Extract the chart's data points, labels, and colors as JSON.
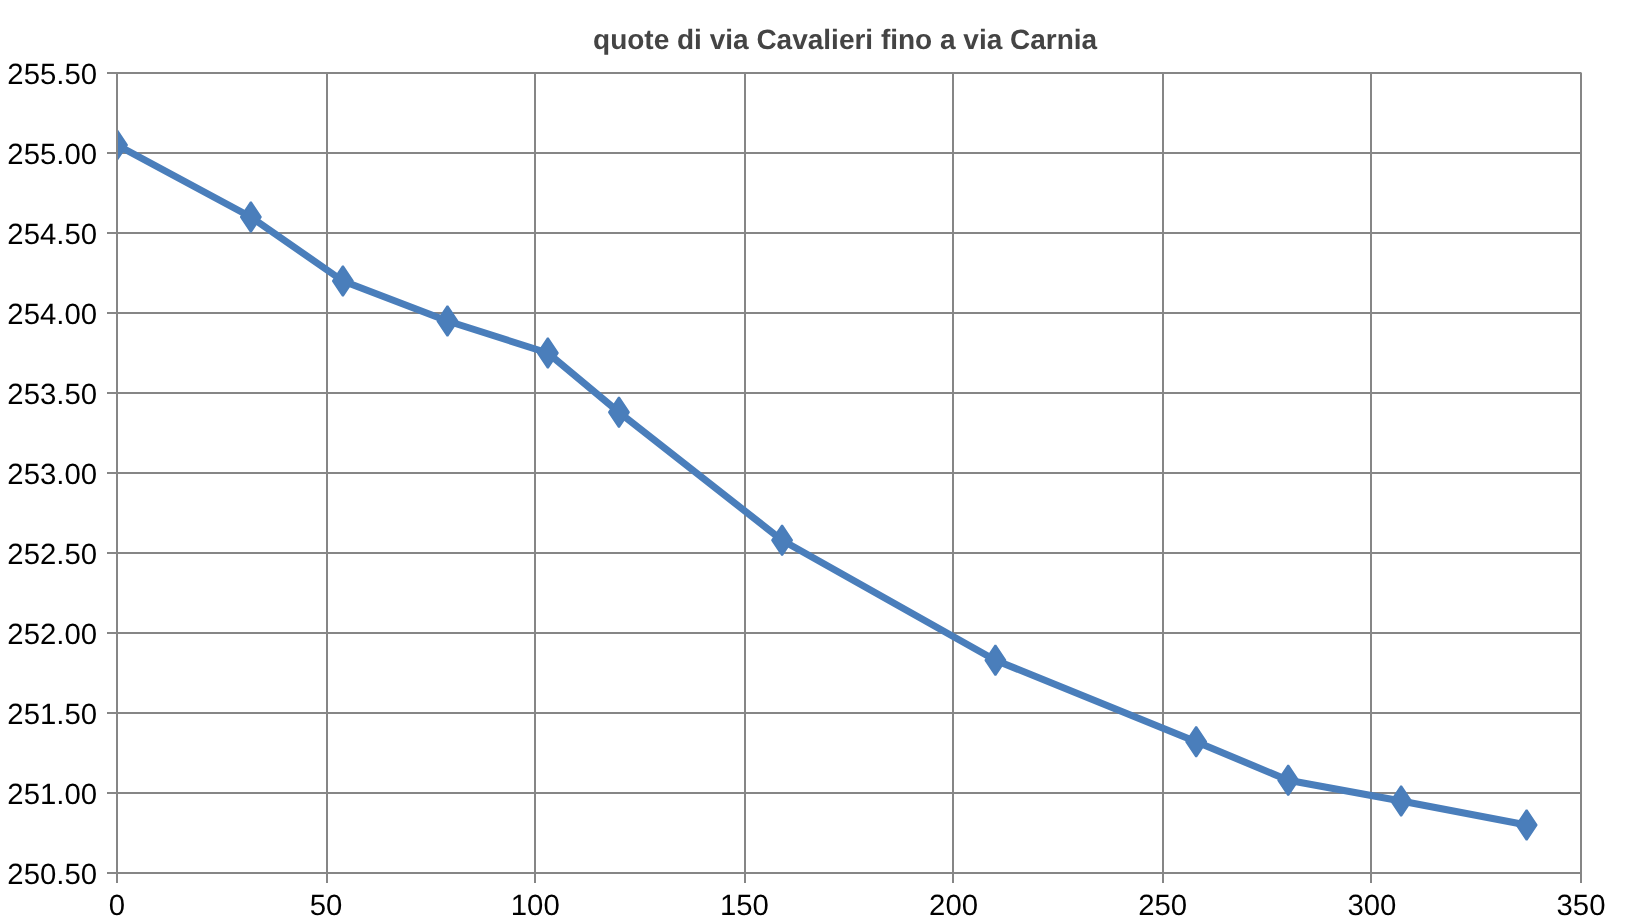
{
  "chart_data": {
    "type": "line",
    "title": "quote di via Cavalieri  fino a via Carnia",
    "x": [
      0,
      32,
      54,
      79,
      103,
      120,
      159,
      210,
      258,
      280,
      307,
      337
    ],
    "series": [
      {
        "color": "#4a7ebb",
        "values": [
          255.05,
          254.6,
          254.2,
          253.95,
          253.75,
          253.38,
          252.58,
          251.83,
          251.32,
          251.08,
          250.95,
          250.8
        ]
      }
    ],
    "xlim": [
      0,
      350
    ],
    "xticks": [
      0,
      50,
      100,
      150,
      200,
      250,
      300,
      350
    ],
    "ylim": [
      250.5,
      255.5
    ],
    "yticks": [
      {
        "value": 250.5,
        "label": "250.50"
      },
      {
        "value": 251.0,
        "label": "251.00"
      },
      {
        "value": 251.5,
        "label": "251.50"
      },
      {
        "value": 252.0,
        "label": "252.00"
      },
      {
        "value": 252.5,
        "label": "252.50"
      },
      {
        "value": 253.0,
        "label": "253.00"
      },
      {
        "value": 253.5,
        "label": "253.50"
      },
      {
        "value": 254.0,
        "label": "254.00"
      },
      {
        "value": 254.5,
        "label": "254.50"
      },
      {
        "value": 255.0,
        "label": "255.00"
      },
      {
        "value": 255.5,
        "label": "255.50"
      }
    ],
    "grid": true,
    "marker": "diamond",
    "line_style": "solid"
  }
}
